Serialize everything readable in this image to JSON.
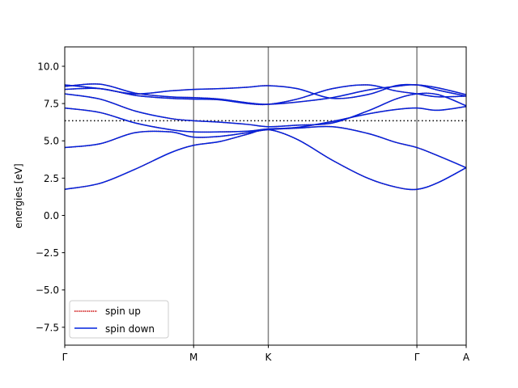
{
  "chart_data": {
    "type": "line",
    "title": "",
    "xlabel": "",
    "ylabel": "energies [eV]",
    "xlim": [
      0,
      5.7
    ],
    "ylim": [
      -8.7,
      11.3
    ],
    "grid": false,
    "legend_position": "lower-left",
    "yticks": [
      -7.5,
      -5.0,
      -2.5,
      0.0,
      2.5,
      5.0,
      7.5,
      10.0
    ],
    "ytick_labels": [
      "−7.5",
      "−5.0",
      "−2.5",
      "0.0",
      "2.5",
      "5.0",
      "7.5",
      "10.0"
    ],
    "xticks": [
      0,
      1.83,
      2.89,
      5.0,
      6.0
    ],
    "xtick_labels": [
      "Γ",
      "M",
      "K",
      "Γ",
      "A"
    ],
    "kpath_lines": [
      1.83,
      2.89,
      5.0
    ],
    "fermi_level": 6.35,
    "colors": {
      "spin_up": "#cc0000",
      "spin_down": "#0022dd",
      "fermi": "#000000",
      "kpath": "#808080"
    },
    "series": [
      {
        "name": "spin up",
        "style": "dotted",
        "color": "#cc0000"
      },
      {
        "name": "spin down",
        "style": "solid",
        "color": "#0022dd"
      }
    ],
    "bands": [
      {
        "x": [
          0,
          0.5,
          1.0,
          1.5,
          1.83,
          2.2,
          2.6,
          2.89,
          3.3,
          3.8,
          4.3,
          4.7,
          5.0,
          5.3,
          5.7
        ],
        "y": [
          1.75,
          2.15,
          3.1,
          4.2,
          4.7,
          4.95,
          5.45,
          5.75,
          5.1,
          3.7,
          2.5,
          1.9,
          1.75,
          2.2,
          3.2
        ]
      },
      {
        "x": [
          0,
          0.5,
          1.0,
          1.5,
          1.83,
          2.2,
          2.6,
          2.89,
          3.3,
          3.8,
          4.3,
          4.7,
          5.0,
          5.3,
          5.7
        ],
        "y": [
          4.55,
          4.8,
          5.55,
          5.6,
          5.25,
          5.3,
          5.55,
          5.75,
          5.85,
          5.95,
          5.5,
          4.9,
          4.55,
          4.0,
          3.2
        ]
      },
      {
        "x": [
          0,
          0.5,
          1.0,
          1.5,
          1.83,
          2.2,
          2.6,
          2.89,
          3.3,
          3.8,
          4.3,
          4.7,
          5.0,
          5.3,
          5.7
        ],
        "y": [
          7.2,
          6.9,
          6.2,
          5.75,
          5.6,
          5.6,
          5.65,
          5.8,
          5.9,
          6.3,
          6.8,
          7.1,
          7.2,
          7.05,
          7.3
        ]
      },
      {
        "x": [
          0,
          0.5,
          1.0,
          1.5,
          1.83,
          2.2,
          2.6,
          2.89,
          3.3,
          3.8,
          4.3,
          4.7,
          5.0,
          5.3,
          5.7
        ],
        "y": [
          8.15,
          7.8,
          7.0,
          6.5,
          6.35,
          6.25,
          6.1,
          5.95,
          6.05,
          6.2,
          7.0,
          7.8,
          8.15,
          8.1,
          7.35
        ]
      },
      {
        "x": [
          0,
          0.5,
          1.0,
          1.5,
          1.83,
          2.2,
          2.6,
          2.89,
          3.3,
          3.8,
          4.3,
          4.7,
          5.0,
          5.3,
          5.7
        ],
        "y": [
          8.45,
          8.5,
          8.05,
          7.85,
          7.8,
          7.75,
          7.5,
          7.45,
          7.8,
          8.5,
          8.75,
          8.35,
          8.15,
          7.95,
          8.0
        ]
      },
      {
        "x": [
          0,
          0.5,
          1.0,
          1.5,
          1.83,
          2.2,
          2.6,
          2.89,
          3.3,
          3.8,
          4.3,
          4.7,
          5.0,
          5.3,
          5.7
        ],
        "y": [
          8.65,
          8.8,
          8.2,
          7.95,
          7.9,
          7.8,
          7.55,
          7.45,
          7.6,
          7.9,
          8.4,
          8.65,
          8.75,
          8.4,
          8.0
        ]
      },
      {
        "x": [
          0,
          0.5,
          1.0,
          1.5,
          1.83,
          2.2,
          2.6,
          2.89,
          3.3,
          3.8,
          4.3,
          4.7,
          5.0,
          5.3,
          5.7
        ],
        "y": [
          8.75,
          8.5,
          8.15,
          8.35,
          8.45,
          8.5,
          8.6,
          8.7,
          8.5,
          7.85,
          8.1,
          8.7,
          8.75,
          8.55,
          8.1
        ]
      }
    ]
  }
}
